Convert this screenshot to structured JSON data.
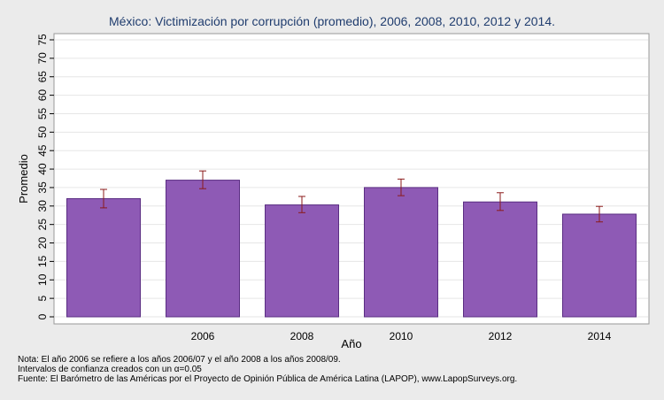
{
  "chart_data": {
    "type": "bar",
    "title": "México: Victimización por corrupción (promedio), 2006, 2008, 2010, 2012 y 2014.",
    "xlabel": "Año",
    "ylabel": "Promedio",
    "categories": [
      "",
      "2006",
      "2008",
      "2010",
      "2012",
      "2014"
    ],
    "values": [
      32.0,
      37.0,
      30.3,
      35.0,
      31.1,
      27.8
    ],
    "ci_low": [
      29.5,
      34.7,
      28.2,
      32.8,
      28.8,
      25.7
    ],
    "ci_high": [
      34.5,
      39.5,
      32.6,
      37.3,
      33.6,
      29.9
    ],
    "ylim": [
      0,
      75
    ],
    "yticks": [
      0,
      5,
      10,
      15,
      20,
      25,
      30,
      35,
      40,
      45,
      50,
      55,
      60,
      65,
      70,
      75
    ],
    "grid": true,
    "colors": {
      "bar": "#8e5ab5",
      "bar_edge": "#5a2d82",
      "error_bar": "#8b1a1a",
      "title": "#1f3c6e",
      "plot_bg": "#ffffff",
      "grid": "#e6e6e6"
    }
  },
  "notes": {
    "line1": "Nota: El año 2006 se refiere a los años 2006/07 y el año 2008 a los años 2008/09.",
    "line2": "Intervalos de confianza creados con un α=0.05",
    "line3": "Fuente: El Barómetro de las Américas por el Proyecto de Opinión Pública de América Latina (LAPOP), www.LapopSurveys.org."
  }
}
